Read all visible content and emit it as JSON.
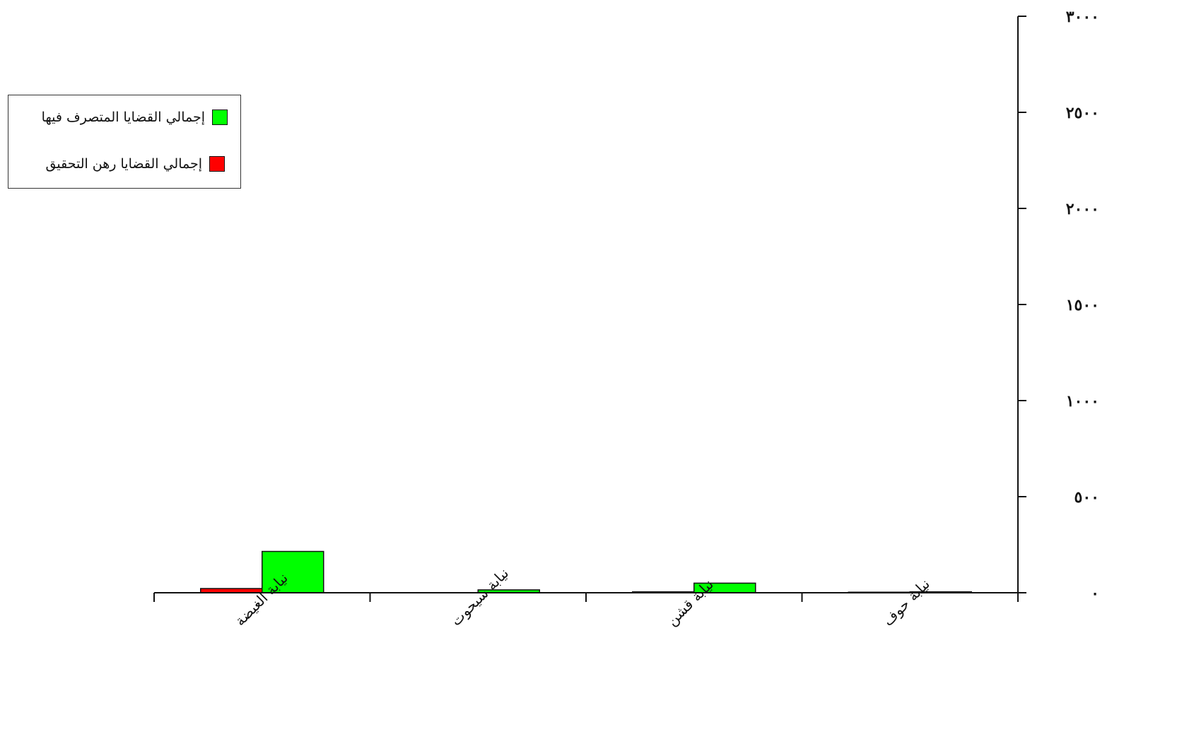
{
  "chart_data": {
    "type": "bar",
    "title": "",
    "xlabel": "",
    "ylabel": "",
    "categories": [
      "نيابة حوف",
      "نيابة قشن",
      "نيابة سيحوت",
      "نيابة الغيضة"
    ],
    "series": [
      {
        "name": "إجمالي القضايا رهن التحقيق",
        "color": "#ff0000",
        "values": [
          3,
          5,
          1,
          22
        ]
      },
      {
        "name": "إجمالي القضايا المتصرف فيها",
        "color": "#00ff00",
        "values": [
          5,
          50,
          15,
          215
        ]
      }
    ],
    "ylim": [
      0,
      3000
    ],
    "yticks": [
      0,
      500,
      1000,
      1500,
      2000,
      2500,
      3000
    ],
    "ytick_labels": [
      "٠",
      "٥٠٠",
      "١٠٠٠",
      "١٥٠٠",
      "٢٠٠٠",
      "٢٥٠٠",
      "٣٠٠٠"
    ],
    "y_axis_side": "right",
    "x_order": "right-to-left",
    "grid": false,
    "legend_position": "top-left"
  }
}
